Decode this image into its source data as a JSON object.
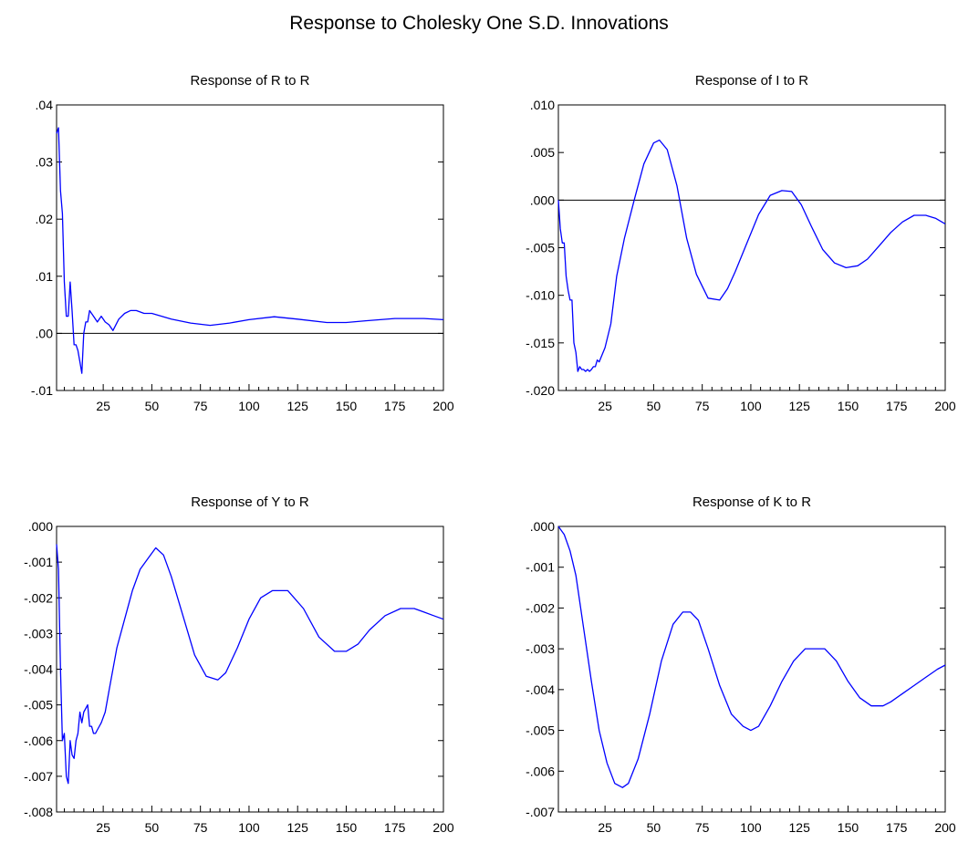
{
  "title": "Response to Cholesky One S.D. Innovations",
  "chart_data": [
    {
      "type": "line",
      "title": "Response of R to R",
      "xlim": [
        1,
        200
      ],
      "ylim": [
        -0.01,
        0.04
      ],
      "xticks": [
        25,
        50,
        75,
        100,
        125,
        150,
        175,
        200
      ],
      "xtick_labels": [
        "25",
        "50",
        "75",
        "100",
        "125",
        "150",
        "175",
        "200"
      ],
      "yticks": [
        -0.01,
        0.0,
        0.01,
        0.02,
        0.03,
        0.04
      ],
      "ytick_labels": [
        "-.01",
        ".00",
        ".01",
        ".02",
        ".03",
        ".04"
      ],
      "zero_line": true,
      "series": [
        {
          "color": "#0000ff",
          "x": [
            1,
            2,
            3,
            4,
            5,
            6,
            7,
            8,
            9,
            10,
            11,
            12,
            13,
            14,
            15,
            16,
            17,
            18,
            20,
            22,
            24,
            26,
            28,
            30,
            33,
            36,
            39,
            42,
            46,
            50,
            55,
            60,
            70,
            80,
            90,
            100,
            113,
            125,
            140,
            150,
            160,
            175,
            190,
            200
          ],
          "y": [
            0.035,
            0.036,
            0.025,
            0.021,
            0.009,
            0.003,
            0.003,
            0.009,
            0.004,
            -0.002,
            -0.002,
            -0.003,
            -0.005,
            -0.007,
            0.0,
            0.002,
            0.002,
            0.004,
            0.003,
            0.002,
            0.003,
            0.002,
            0.0015,
            0.0005,
            0.0025,
            0.0035,
            0.004,
            0.004,
            0.0035,
            0.0035,
            0.003,
            0.0025,
            0.0018,
            0.0014,
            0.0018,
            0.0024,
            0.0029,
            0.0025,
            0.0019,
            0.0019,
            0.0022,
            0.0026,
            0.0026,
            0.0024
          ]
        }
      ]
    },
    {
      "type": "line",
      "title": "Response of I to R",
      "xlim": [
        1,
        200
      ],
      "ylim": [
        -0.02,
        0.01
      ],
      "xticks": [
        25,
        50,
        75,
        100,
        125,
        150,
        175,
        200
      ],
      "xtick_labels": [
        "25",
        "50",
        "75",
        "100",
        "125",
        "150",
        "175",
        "200"
      ],
      "yticks": [
        -0.02,
        -0.015,
        -0.01,
        -0.005,
        0.0,
        0.005,
        0.01
      ],
      "ytick_labels": [
        "-.020",
        "-.015",
        "-.010",
        "-.005",
        ".000",
        ".005",
        ".010"
      ],
      "zero_line": true,
      "series": [
        {
          "color": "#0000ff",
          "x": [
            1,
            2,
            3,
            4,
            5,
            6,
            7,
            8,
            9,
            10,
            11,
            12,
            13,
            14,
            15,
            16,
            17,
            18,
            19,
            20,
            21,
            22,
            25,
            28,
            31,
            35,
            40,
            45,
            50,
            53,
            57,
            62,
            67,
            72,
            78,
            84,
            88,
            92,
            98,
            104,
            110,
            116,
            121,
            126,
            131,
            137,
            143,
            149,
            155,
            160,
            166,
            172,
            178,
            184,
            190,
            195,
            200
          ],
          "y": [
            0.0,
            -0.003,
            -0.0045,
            -0.0045,
            -0.008,
            -0.0095,
            -0.0105,
            -0.0105,
            -0.015,
            -0.016,
            -0.018,
            -0.0175,
            -0.0178,
            -0.0178,
            -0.018,
            -0.0178,
            -0.018,
            -0.0178,
            -0.0175,
            -0.0175,
            -0.0168,
            -0.017,
            -0.0155,
            -0.013,
            -0.008,
            -0.004,
            0.0,
            0.0038,
            0.006,
            0.0063,
            0.0053,
            0.0015,
            -0.004,
            -0.0078,
            -0.0103,
            -0.0105,
            -0.0093,
            -0.0075,
            -0.0045,
            -0.0015,
            0.0005,
            0.001,
            0.0009,
            -0.0005,
            -0.0027,
            -0.0052,
            -0.0066,
            -0.0071,
            -0.0069,
            -0.0062,
            -0.0048,
            -0.0034,
            -0.0023,
            -0.0016,
            -0.0016,
            -0.0019,
            -0.0025
          ]
        }
      ]
    },
    {
      "type": "line",
      "title": "Response of Y to R",
      "xlim": [
        1,
        200
      ],
      "ylim": [
        -0.008,
        0.0
      ],
      "xticks": [
        25,
        50,
        75,
        100,
        125,
        150,
        175,
        200
      ],
      "xtick_labels": [
        "25",
        "50",
        "75",
        "100",
        "125",
        "150",
        "175",
        "200"
      ],
      "yticks": [
        -0.008,
        -0.007,
        -0.006,
        -0.005,
        -0.004,
        -0.003,
        -0.002,
        -0.001,
        0.0
      ],
      "ytick_labels": [
        "-.008",
        "-.007",
        "-.006",
        "-.005",
        "-.004",
        "-.003",
        "-.002",
        "-.001",
        ".000"
      ],
      "zero_line": false,
      "series": [
        {
          "color": "#0000ff",
          "x": [
            1,
            2,
            3,
            4,
            5,
            6,
            7,
            8,
            9,
            10,
            11,
            12,
            13,
            14,
            15,
            16,
            17,
            18,
            19,
            20,
            21,
            22,
            24,
            26,
            28,
            32,
            36,
            40,
            44,
            48,
            52,
            56,
            60,
            66,
            72,
            78,
            84,
            88,
            94,
            100,
            106,
            112,
            120,
            128,
            136,
            144,
            150,
            156,
            162,
            170,
            178,
            185,
            190,
            195,
            200
          ],
          "y": [
            -0.0005,
            -0.0012,
            -0.004,
            -0.006,
            -0.0058,
            -0.007,
            -0.0072,
            -0.006,
            -0.0064,
            -0.0065,
            -0.006,
            -0.0058,
            -0.0052,
            -0.0055,
            -0.0052,
            -0.0051,
            -0.005,
            -0.0056,
            -0.0056,
            -0.0058,
            -0.0058,
            -0.0057,
            -0.0055,
            -0.0052,
            -0.0046,
            -0.0034,
            -0.0026,
            -0.0018,
            -0.0012,
            -0.0009,
            -0.0006,
            -0.0008,
            -0.0014,
            -0.0025,
            -0.0036,
            -0.0042,
            -0.0043,
            -0.0041,
            -0.0034,
            -0.0026,
            -0.002,
            -0.0018,
            -0.0018,
            -0.0023,
            -0.0031,
            -0.0035,
            -0.0035,
            -0.0033,
            -0.0029,
            -0.0025,
            -0.0023,
            -0.0023,
            -0.0024,
            -0.0025,
            -0.0026
          ]
        }
      ]
    },
    {
      "type": "line",
      "title": "Response of K to R",
      "xlim": [
        1,
        200
      ],
      "ylim": [
        -0.007,
        0.0
      ],
      "xticks": [
        25,
        50,
        75,
        100,
        125,
        150,
        175,
        200
      ],
      "xtick_labels": [
        "25",
        "50",
        "75",
        "100",
        "125",
        "150",
        "175",
        "200"
      ],
      "yticks": [
        -0.007,
        -0.006,
        -0.005,
        -0.004,
        -0.003,
        -0.002,
        -0.001,
        0.0
      ],
      "ytick_labels": [
        "-.007",
        "-.006",
        "-.005",
        "-.004",
        "-.003",
        "-.002",
        "-.001",
        ".000"
      ],
      "zero_line": false,
      "series": [
        {
          "color": "#0000ff",
          "x": [
            1,
            4,
            7,
            10,
            14,
            18,
            22,
            26,
            30,
            34,
            37,
            42,
            48,
            54,
            60,
            65,
            69,
            73,
            78,
            84,
            90,
            96,
            100,
            104,
            110,
            116,
            122,
            128,
            133,
            138,
            144,
            150,
            156,
            162,
            168,
            172,
            178,
            184,
            190,
            196,
            200
          ],
          "y": [
            0.0,
            -0.0002,
            -0.0006,
            -0.0012,
            -0.0025,
            -0.0038,
            -0.005,
            -0.0058,
            -0.0063,
            -0.0064,
            -0.0063,
            -0.0057,
            -0.0046,
            -0.0033,
            -0.0024,
            -0.0021,
            -0.0021,
            -0.0023,
            -0.003,
            -0.0039,
            -0.0046,
            -0.0049,
            -0.005,
            -0.0049,
            -0.0044,
            -0.0038,
            -0.0033,
            -0.003,
            -0.003,
            -0.003,
            -0.0033,
            -0.0038,
            -0.0042,
            -0.0044,
            -0.0044,
            -0.0043,
            -0.0041,
            -0.0039,
            -0.0037,
            -0.0035,
            -0.0034
          ]
        }
      ]
    }
  ]
}
